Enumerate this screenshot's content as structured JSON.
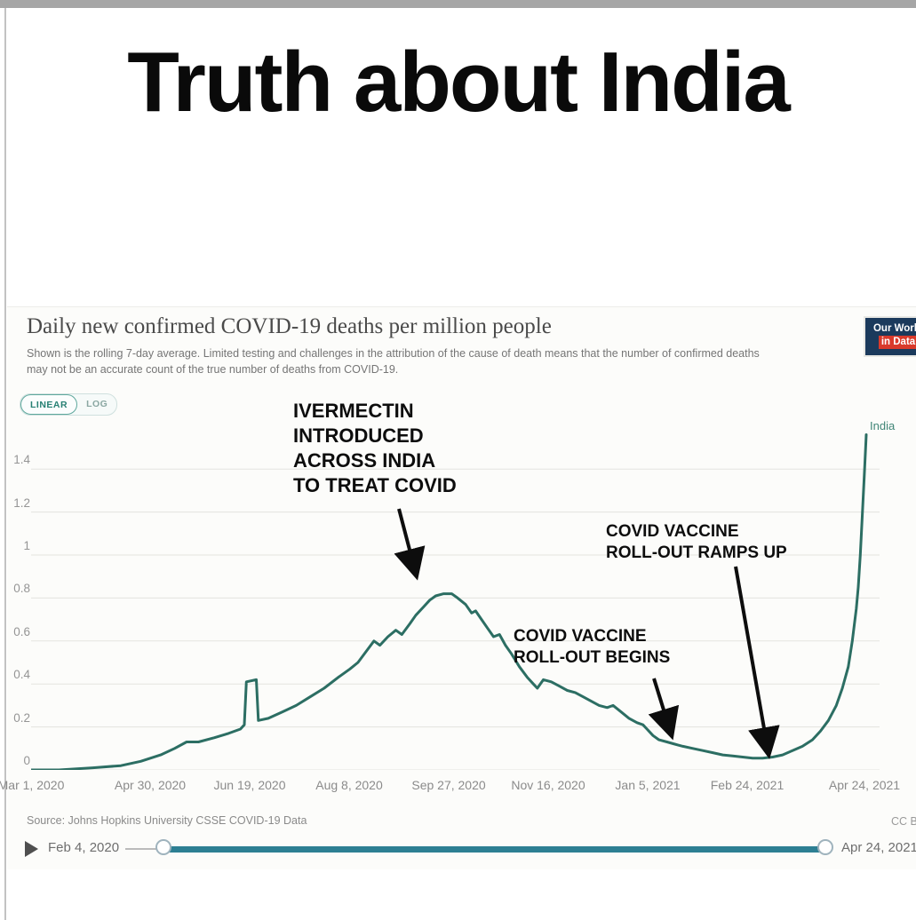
{
  "meme": {
    "title": "Truth about India"
  },
  "chart": {
    "title": "Daily new confirmed COVID-19 deaths per million people",
    "subtitle": "Shown is the rolling 7-day average. Limited testing and challenges in the attribution of the cause of death means that the number of confirmed deaths may not be an accurate count of the true number of deaths from COVID-19.",
    "logo": {
      "line1": "Our World",
      "line2": "in Data"
    },
    "toggle": {
      "linear": "LINEAR",
      "log": "LOG",
      "selected": "LINEAR"
    },
    "entity_label": "India",
    "annotations": [
      {
        "lines": [
          "IVERMECTIN",
          "INTRODUCED",
          "ACROSS INDIA",
          "TO TREAT COVID"
        ]
      },
      {
        "lines": [
          "COVID VACCINE",
          "ROLL-OUT BEGINS"
        ]
      },
      {
        "lines": [
          "COVID VACCINE",
          "ROLL-OUT RAMPS UP"
        ]
      }
    ],
    "source_label": "Source: Johns Hopkins University CSSE COVID-19 Data",
    "license": "CC BY",
    "timeline": {
      "start": "Feb 4, 2020",
      "end": "Apr 24, 2021"
    }
  },
  "chart_data": {
    "type": "line",
    "title": "Daily new confirmed COVID-19 deaths per million people",
    "subtitle": "Shown is the rolling 7-day average. Limited testing and challenges in the attribution of the cause of death means that the number of confirmed deaths may not be an accurate count of the true number of deaths from COVID-19.",
    "xlabel": "",
    "ylabel": "Daily new confirmed COVID-19 deaths per million people",
    "ylim": [
      0,
      1.56
    ],
    "x_range": [
      "2020-03-01",
      "2021-04-24"
    ],
    "grid": true,
    "line_color": "#2c6e63",
    "yticks": [
      "0",
      "0.2",
      "0.4",
      "0.6",
      "0.8",
      "1",
      "1.2",
      "1.4"
    ],
    "yticks_values": [
      0,
      0.2,
      0.4,
      0.6,
      0.8,
      1,
      1.2,
      1.4
    ],
    "xticks": [
      "Mar 1, 2020",
      "Apr 30, 2020",
      "Jun 19, 2020",
      "Aug 8, 2020",
      "Sep 27, 2020",
      "Nov 16, 2020",
      "Jan 5, 2021",
      "Feb 24, 2021",
      "Apr 24, 2021"
    ],
    "series": [
      {
        "name": "India",
        "points": [
          [
            "2020-03-01",
            0.0
          ],
          [
            "2020-03-15",
            0.0
          ],
          [
            "2020-04-01",
            0.01
          ],
          [
            "2020-04-15",
            0.02
          ],
          [
            "2020-04-25",
            0.04
          ],
          [
            "2020-05-05",
            0.07
          ],
          [
            "2020-05-12",
            0.1
          ],
          [
            "2020-05-18",
            0.13
          ],
          [
            "2020-05-24",
            0.13
          ],
          [
            "2020-06-01",
            0.15
          ],
          [
            "2020-06-08",
            0.17
          ],
          [
            "2020-06-14",
            0.19
          ],
          [
            "2020-06-16",
            0.21
          ],
          [
            "2020-06-17",
            0.41
          ],
          [
            "2020-06-22",
            0.42
          ],
          [
            "2020-06-23",
            0.23
          ],
          [
            "2020-06-28",
            0.24
          ],
          [
            "2020-07-05",
            0.27
          ],
          [
            "2020-07-12",
            0.3
          ],
          [
            "2020-07-19",
            0.34
          ],
          [
            "2020-07-26",
            0.38
          ],
          [
            "2020-08-02",
            0.43
          ],
          [
            "2020-08-08",
            0.47
          ],
          [
            "2020-08-12",
            0.5
          ],
          [
            "2020-08-16",
            0.55
          ],
          [
            "2020-08-20",
            0.6
          ],
          [
            "2020-08-23",
            0.58
          ],
          [
            "2020-08-27",
            0.62
          ],
          [
            "2020-08-31",
            0.65
          ],
          [
            "2020-09-03",
            0.63
          ],
          [
            "2020-09-07",
            0.68
          ],
          [
            "2020-09-10",
            0.72
          ],
          [
            "2020-09-14",
            0.76
          ],
          [
            "2020-09-17",
            0.79
          ],
          [
            "2020-09-20",
            0.81
          ],
          [
            "2020-09-24",
            0.82
          ],
          [
            "2020-09-28",
            0.82
          ],
          [
            "2020-10-01",
            0.8
          ],
          [
            "2020-10-05",
            0.77
          ],
          [
            "2020-10-08",
            0.73
          ],
          [
            "2020-10-10",
            0.74
          ],
          [
            "2020-10-13",
            0.7
          ],
          [
            "2020-10-16",
            0.66
          ],
          [
            "2020-10-19",
            0.62
          ],
          [
            "2020-10-22",
            0.63
          ],
          [
            "2020-10-25",
            0.58
          ],
          [
            "2020-10-28",
            0.54
          ],
          [
            "2020-11-01",
            0.48
          ],
          [
            "2020-11-05",
            0.43
          ],
          [
            "2020-11-08",
            0.4
          ],
          [
            "2020-11-10",
            0.38
          ],
          [
            "2020-11-13",
            0.42
          ],
          [
            "2020-11-17",
            0.41
          ],
          [
            "2020-11-21",
            0.39
          ],
          [
            "2020-11-25",
            0.37
          ],
          [
            "2020-11-29",
            0.36
          ],
          [
            "2020-12-03",
            0.34
          ],
          [
            "2020-12-07",
            0.32
          ],
          [
            "2020-12-11",
            0.3
          ],
          [
            "2020-12-15",
            0.29
          ],
          [
            "2020-12-18",
            0.3
          ],
          [
            "2020-12-22",
            0.27
          ],
          [
            "2020-12-26",
            0.24
          ],
          [
            "2020-12-30",
            0.22
          ],
          [
            "2021-01-02",
            0.21
          ],
          [
            "2021-01-04",
            0.19
          ],
          [
            "2021-01-07",
            0.16
          ],
          [
            "2021-01-10",
            0.14
          ],
          [
            "2021-01-14",
            0.13
          ],
          [
            "2021-01-18",
            0.12
          ],
          [
            "2021-01-22",
            0.11
          ],
          [
            "2021-01-27",
            0.1
          ],
          [
            "2021-02-01",
            0.09
          ],
          [
            "2021-02-06",
            0.08
          ],
          [
            "2021-02-11",
            0.07
          ],
          [
            "2021-02-16",
            0.065
          ],
          [
            "2021-02-21",
            0.06
          ],
          [
            "2021-02-26",
            0.055
          ],
          [
            "2021-03-03",
            0.055
          ],
          [
            "2021-03-08",
            0.06
          ],
          [
            "2021-03-13",
            0.07
          ],
          [
            "2021-03-18",
            0.09
          ],
          [
            "2021-03-23",
            0.11
          ],
          [
            "2021-03-28",
            0.14
          ],
          [
            "2021-04-01",
            0.18
          ],
          [
            "2021-04-05",
            0.23
          ],
          [
            "2021-04-09",
            0.3
          ],
          [
            "2021-04-12",
            0.38
          ],
          [
            "2021-04-15",
            0.48
          ],
          [
            "2021-04-17",
            0.6
          ],
          [
            "2021-04-19",
            0.75
          ],
          [
            "2021-04-20",
            0.85
          ],
          [
            "2021-04-21",
            1.0
          ],
          [
            "2021-04-22",
            1.18
          ],
          [
            "2021-04-23",
            1.37
          ],
          [
            "2021-04-24",
            1.56
          ]
        ]
      }
    ],
    "annotations": [
      {
        "text": "IVERMECTIN INTRODUCED ACROSS INDIA TO TREAT COVID",
        "points_to": {
          "date": "2020-09-16",
          "value": 0.8
        }
      },
      {
        "text": "COVID VACCINE ROLL-OUT BEGINS",
        "points_to": {
          "date": "2021-01-16",
          "value": 0.12
        }
      },
      {
        "text": "COVID VACCINE ROLL-OUT RAMPS UP",
        "points_to": {
          "date": "2021-03-07",
          "value": 0.06
        }
      }
    ],
    "legend": "series label at line end: India"
  }
}
